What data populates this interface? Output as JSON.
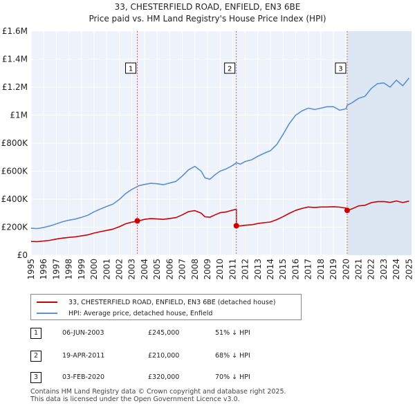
{
  "chart_data": {
    "type": "line",
    "title": "33, CHESTERFIELD ROAD, ENFIELD, EN3 6BE",
    "subtitle": "Price paid vs. HM Land Registry's House Price Index (HPI)",
    "xlabel": "",
    "ylabel": "",
    "xlim": [
      1995,
      2025.2
    ],
    "ylim": [
      0,
      1600000
    ],
    "y_ticks": [
      {
        "value": 0,
        "label": "£0"
      },
      {
        "value": 200000,
        "label": "£200K"
      },
      {
        "value": 400000,
        "label": "£400K"
      },
      {
        "value": 600000,
        "label": "£600K"
      },
      {
        "value": 800000,
        "label": "£800K"
      },
      {
        "value": 1000000,
        "label": "£1M"
      },
      {
        "value": 1200000,
        "label": "£1.2M"
      },
      {
        "value": 1400000,
        "label": "£1.4M"
      },
      {
        "value": 1600000,
        "label": "£1.6M"
      }
    ],
    "x_ticks": [
      "1995",
      "1996",
      "1997",
      "1998",
      "1999",
      "2000",
      "2001",
      "2002",
      "2003",
      "2004",
      "2005",
      "2006",
      "2007",
      "2008",
      "2009",
      "2010",
      "2011",
      "2012",
      "2013",
      "2014",
      "2015",
      "2016",
      "2017",
      "2018",
      "2019",
      "2020",
      "2021",
      "2022",
      "2023",
      "2024",
      "2025"
    ],
    "grid": true,
    "series": [
      {
        "name": "33, CHESTERFIELD ROAD, ENFIELD, EN3 6BE (detached house)",
        "color": "#cc0000",
        "x": [
          1995.0,
          1995.5,
          1996.0,
          1996.5,
          1997.0,
          1997.5,
          1998.0,
          1998.5,
          1999.0,
          1999.5,
          2000.0,
          2000.5,
          2001.0,
          2001.5,
          2002.0,
          2002.5,
          2003.0,
          2003.43,
          2003.43,
          2003.5,
          2004.0,
          2004.5,
          2005.0,
          2005.5,
          2006.0,
          2006.5,
          2007.0,
          2007.5,
          2008.0,
          2008.5,
          2008.8,
          2009.2,
          2009.6,
          2010.0,
          2010.5,
          2011.0,
          2011.29,
          2011.29,
          2011.6,
          2012.0,
          2012.5,
          2013.0,
          2013.5,
          2014.0,
          2014.5,
          2015.0,
          2015.5,
          2016.0,
          2016.5,
          2017.0,
          2017.5,
          2018.0,
          2018.5,
          2019.0,
          2019.5,
          2020.0,
          2020.09,
          2020.09,
          2020.5,
          2021.0,
          2021.5,
          2022.0,
          2022.5,
          2023.0,
          2023.5,
          2024.0,
          2024.5,
          2025.0
        ],
        "values": [
          98000,
          97000,
          101000,
          106000,
          115000,
          122000,
          127000,
          131000,
          138000,
          145000,
          158000,
          168000,
          177000,
          186000,
          203000,
          224000,
          236000,
          242000,
          245000,
          244000,
          256000,
          261000,
          259000,
          256000,
          262000,
          268000,
          288000,
          311000,
          318000,
          300000,
          274000,
          271000,
          288000,
          303000,
          309000,
          322000,
          328000,
          210000,
          209000,
          214000,
          217000,
          226000,
          232000,
          237000,
          254000,
          275000,
          299000,
          320000,
          334000,
          344000,
          340000,
          344000,
          344000,
          346000,
          343000,
          336000,
          334000,
          320000,
          332000,
          352000,
          356000,
          375000,
          382000,
          383000,
          377000,
          387000,
          376000,
          386000
        ]
      },
      {
        "name": "HPI: Average price, detached house, Enfield",
        "color": "#5b8fd0",
        "x": [
          1995.0,
          1995.5,
          1996.0,
          1996.5,
          1997.0,
          1997.5,
          1998.0,
          1998.5,
          1999.0,
          1999.5,
          2000.0,
          2000.5,
          2001.0,
          2001.5,
          2002.0,
          2002.5,
          2003.0,
          2003.43,
          2003.5,
          2004.0,
          2004.5,
          2005.0,
          2005.5,
          2006.0,
          2006.5,
          2007.0,
          2007.5,
          2008.0,
          2008.5,
          2008.8,
          2009.2,
          2009.6,
          2010.0,
          2010.5,
          2011.0,
          2011.29,
          2011.6,
          2012.0,
          2012.5,
          2013.0,
          2013.5,
          2014.0,
          2014.5,
          2015.0,
          2015.5,
          2016.0,
          2016.5,
          2017.0,
          2017.5,
          2018.0,
          2018.5,
          2019.0,
          2019.5,
          2020.0,
          2020.09,
          2020.5,
          2021.0,
          2021.5,
          2022.0,
          2022.5,
          2023.0,
          2023.5,
          2024.0,
          2024.5,
          2025.0
        ],
        "values": [
          192000,
          190000,
          198000,
          209000,
          223000,
          239000,
          250000,
          258000,
          270000,
          285000,
          310000,
          330000,
          348000,
          365000,
          398000,
          440000,
          470000,
          490000,
          495000,
          505000,
          513000,
          510000,
          503000,
          515000,
          527000,
          565000,
          610000,
          634000,
          600000,
          552000,
          542000,
          575000,
          600000,
          617000,
          641000,
          660000,
          650000,
          669000,
          681000,
          706000,
          728000,
          746000,
          790000,
          862000,
          940000,
          1000000,
          1030000,
          1050000,
          1040000,
          1050000,
          1060000,
          1060000,
          1035000,
          1045000,
          1070000,
          1090000,
          1120000,
          1135000,
          1190000,
          1225000,
          1230000,
          1200000,
          1250000,
          1210000,
          1265000
        ]
      }
    ],
    "transactions": [
      {
        "marker": "1",
        "x": 2003.43,
        "value": 245000,
        "date": "06-JUN-2003",
        "price": "£245,000",
        "hpi_diff": "51% ↓ HPI"
      },
      {
        "marker": "2",
        "x": 2011.29,
        "value": 210000,
        "date": "19-APR-2011",
        "price": "£210,000",
        "hpi_diff": "68% ↓ HPI"
      },
      {
        "marker": "3",
        "x": 2020.09,
        "value": 320000,
        "date": "03-FEB-2020",
        "price": "£320,000",
        "hpi_diff": "70% ↓ HPI"
      }
    ]
  },
  "legend": {
    "property_label": "33, CHESTERFIELD ROAD, ENFIELD, EN3 6BE (detached house)",
    "hpi_label": "HPI: Average price, detached house, Enfield"
  },
  "footer": {
    "line1": "Contains HM Land Registry data © Crown copyright and database right 2025.",
    "line2": "This data is licensed under the Open Government Licence v3.0."
  }
}
